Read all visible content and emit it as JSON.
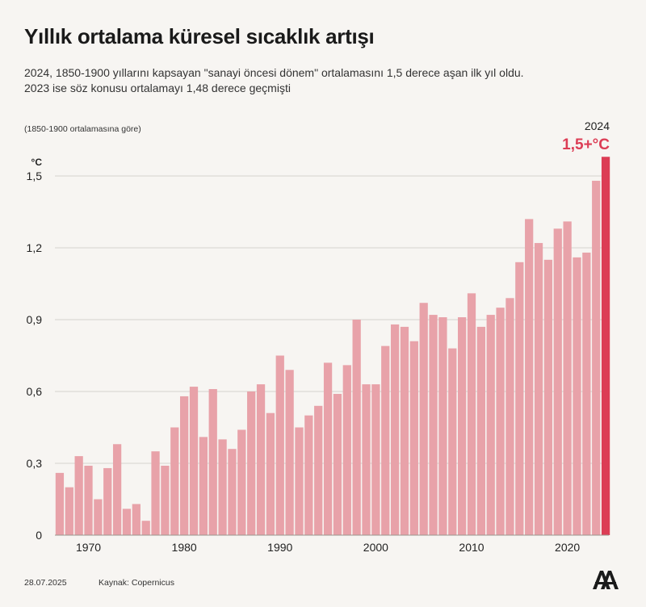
{
  "header": {
    "title": "Yıllık ortalama küresel sıcaklık artışı",
    "subtitle_line1": "2024, 1850-1900 yıllarını kapsayan \"sanayi öncesi dönem\" ortalamasını 1,5 derece aşan ilk yıl oldu.",
    "subtitle_line2": "2023 ise söz konusu ortalamayı 1,48 derece geçmişti",
    "note": "(1850-1900 ortalamasına göre)"
  },
  "footer": {
    "date": "28.07.2025",
    "source": "Kaynak: Copernicus",
    "logo": "AA"
  },
  "colors": {
    "bar": "#e8a2a9",
    "highlight": "#dc3d55",
    "grid": "#d6d3cf",
    "text": "#222222"
  },
  "chart_data": {
    "type": "bar",
    "ylabel": "°C",
    "ylim": [
      0,
      1.6
    ],
    "yticks": [
      0,
      0.3,
      0.6,
      0.9,
      1.2,
      1.5
    ],
    "ytick_labels": [
      "0",
      "0,3",
      "0,6",
      "0,9",
      "1,2",
      "1,5"
    ],
    "xtick_labels": [
      "1970",
      "1980",
      "1990",
      "2000",
      "2010",
      "2020"
    ],
    "xtick_years": [
      1970,
      1980,
      1990,
      2000,
      2010,
      2020
    ],
    "grid": true,
    "highlight": {
      "year": 2024,
      "label": "2024",
      "value_label": "1,5+°C"
    },
    "years": [
      1967,
      1968,
      1969,
      1970,
      1971,
      1972,
      1973,
      1974,
      1975,
      1976,
      1977,
      1978,
      1979,
      1980,
      1981,
      1982,
      1983,
      1984,
      1985,
      1986,
      1987,
      1988,
      1989,
      1990,
      1991,
      1992,
      1993,
      1994,
      1995,
      1996,
      1997,
      1998,
      1999,
      2000,
      2001,
      2002,
      2003,
      2004,
      2005,
      2006,
      2007,
      2008,
      2009,
      2010,
      2011,
      2012,
      2013,
      2014,
      2015,
      2016,
      2017,
      2018,
      2019,
      2020,
      2021,
      2022,
      2023,
      2024
    ],
    "values": [
      0.26,
      0.2,
      0.33,
      0.29,
      0.15,
      0.28,
      0.38,
      0.11,
      0.13,
      0.06,
      0.35,
      0.29,
      0.45,
      0.58,
      0.62,
      0.41,
      0.61,
      0.4,
      0.36,
      0.44,
      0.6,
      0.63,
      0.51,
      0.75,
      0.69,
      0.45,
      0.5,
      0.54,
      0.72,
      0.59,
      0.71,
      0.9,
      0.63,
      0.63,
      0.79,
      0.88,
      0.87,
      0.81,
      0.97,
      0.92,
      0.91,
      0.78,
      0.91,
      1.01,
      0.87,
      0.92,
      0.95,
      0.99,
      1.14,
      1.32,
      1.22,
      1.15,
      1.28,
      1.31,
      1.16,
      1.18,
      1.48,
      1.58
    ]
  }
}
